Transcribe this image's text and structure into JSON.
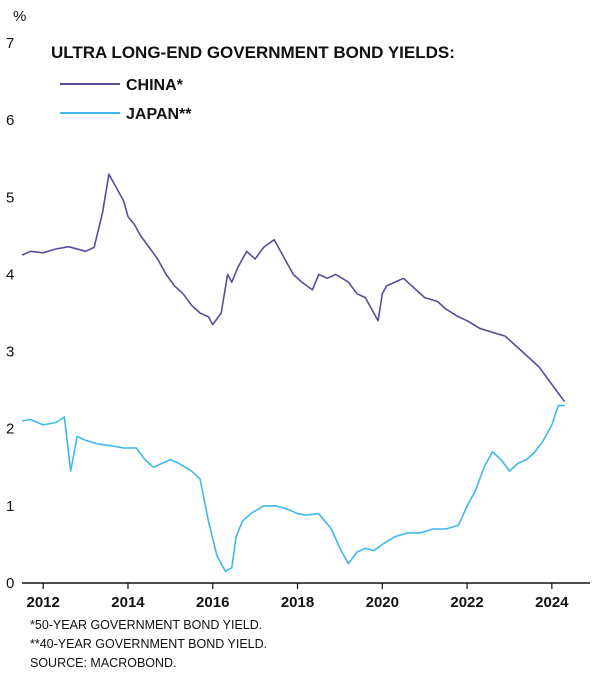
{
  "unit_label": "%",
  "colors": {
    "china": "#5b4b9a",
    "japan": "#3fb8ee",
    "axis": "#111111"
  },
  "chart_data": {
    "type": "line",
    "title": "ULTRA LONG-END GOVERNMENT BOND YIELDS:",
    "ylabel": "%",
    "xlabel": "",
    "ylim": [
      0,
      7
    ],
    "xlim": [
      2011.5,
      2024.9
    ],
    "yticks": [
      "0",
      "1",
      "2",
      "3",
      "4",
      "5",
      "6",
      "7"
    ],
    "xticks": [
      "2012",
      "2014",
      "2016",
      "2018",
      "2020",
      "2022",
      "2024"
    ],
    "legend_position": "top-left",
    "grid": false,
    "series": [
      {
        "name": "CHINA*",
        "x": [
          2011.5,
          2011.7,
          2012.0,
          2012.3,
          2012.6,
          2013.0,
          2013.2,
          2013.4,
          2013.55,
          2013.7,
          2013.9,
          2014.0,
          2014.15,
          2014.3,
          2014.5,
          2014.7,
          2014.9,
          2015.1,
          2015.3,
          2015.5,
          2015.7,
          2015.9,
          2016.0,
          2016.2,
          2016.35,
          2016.45,
          2016.6,
          2016.8,
          2017.0,
          2017.2,
          2017.45,
          2017.7,
          2017.9,
          2018.1,
          2018.35,
          2018.5,
          2018.7,
          2018.9,
          2019.2,
          2019.4,
          2019.6,
          2019.8,
          2019.9,
          2020.0,
          2020.1,
          2020.3,
          2020.5,
          2020.8,
          2021.0,
          2021.3,
          2021.5,
          2021.8,
          2022.0,
          2022.3,
          2022.6,
          2022.9,
          2023.1,
          2023.4,
          2023.7,
          2023.9,
          2024.1,
          2024.3
        ],
        "values": [
          4.25,
          4.3,
          4.28,
          4.33,
          4.36,
          4.3,
          4.35,
          4.8,
          5.3,
          5.15,
          4.95,
          4.75,
          4.65,
          4.5,
          4.35,
          4.2,
          4.0,
          3.85,
          3.75,
          3.6,
          3.5,
          3.45,
          3.35,
          3.5,
          4.0,
          3.9,
          4.1,
          4.3,
          4.2,
          4.35,
          4.45,
          4.2,
          4.0,
          3.9,
          3.8,
          4.0,
          3.95,
          4.0,
          3.9,
          3.75,
          3.7,
          3.5,
          3.4,
          3.75,
          3.85,
          3.9,
          3.95,
          3.8,
          3.7,
          3.65,
          3.55,
          3.45,
          3.4,
          3.3,
          3.25,
          3.2,
          3.1,
          2.95,
          2.8,
          2.65,
          2.5,
          2.35
        ]
      },
      {
        "name": "JAPAN**",
        "x": [
          2011.5,
          2011.7,
          2012.0,
          2012.3,
          2012.5,
          2012.65,
          2012.8,
          2013.0,
          2013.3,
          2013.6,
          2013.9,
          2014.2,
          2014.4,
          2014.6,
          2014.8,
          2015.0,
          2015.2,
          2015.5,
          2015.7,
          2015.9,
          2016.1,
          2016.3,
          2016.45,
          2016.55,
          2016.7,
          2016.9,
          2017.2,
          2017.5,
          2017.8,
          2018.0,
          2018.2,
          2018.5,
          2018.8,
          2019.0,
          2019.2,
          2019.4,
          2019.6,
          2019.8,
          2020.0,
          2020.3,
          2020.6,
          2020.9,
          2021.2,
          2021.5,
          2021.8,
          2022.0,
          2022.2,
          2022.4,
          2022.6,
          2022.8,
          2023.0,
          2023.2,
          2023.4,
          2023.6,
          2023.8,
          2024.0,
          2024.15,
          2024.3
        ],
        "values": [
          2.1,
          2.12,
          2.05,
          2.08,
          2.15,
          1.45,
          1.9,
          1.85,
          1.8,
          1.78,
          1.75,
          1.75,
          1.6,
          1.5,
          1.55,
          1.6,
          1.55,
          1.45,
          1.35,
          0.8,
          0.35,
          0.15,
          0.2,
          0.6,
          0.8,
          0.9,
          1.0,
          1.0,
          0.95,
          0.9,
          0.88,
          0.9,
          0.7,
          0.45,
          0.25,
          0.4,
          0.45,
          0.42,
          0.5,
          0.6,
          0.65,
          0.65,
          0.7,
          0.7,
          0.75,
          1.0,
          1.2,
          1.5,
          1.7,
          1.6,
          1.45,
          1.55,
          1.6,
          1.7,
          1.85,
          2.05,
          2.3,
          2.3
        ]
      }
    ],
    "footnotes": [
      "*50-YEAR GOVERNMENT BOND YIELD.",
      "**40-YEAR GOVERNMENT BOND YIELD.",
      "SOURCE: MACROBOND."
    ]
  }
}
